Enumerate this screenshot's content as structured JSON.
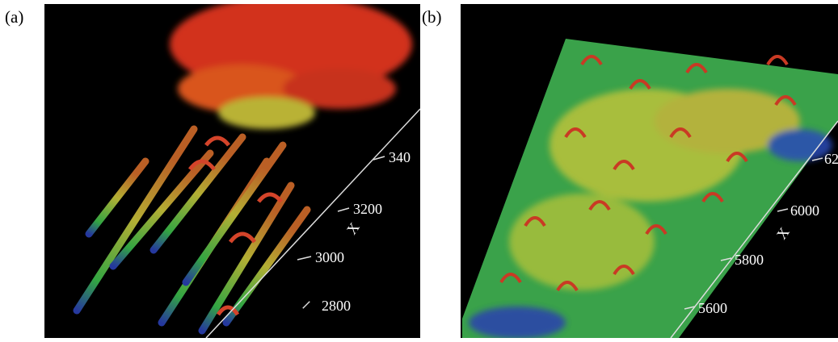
{
  "panels": [
    {
      "label": "(a)",
      "axis": {
        "title": "X",
        "ticks": [
          "2800",
          "3000",
          "3200",
          "340"
        ]
      }
    },
    {
      "label": "(b)",
      "axis": {
        "title": "X",
        "ticks": [
          "5600",
          "5800",
          "6000",
          "62"
        ]
      }
    }
  ]
}
